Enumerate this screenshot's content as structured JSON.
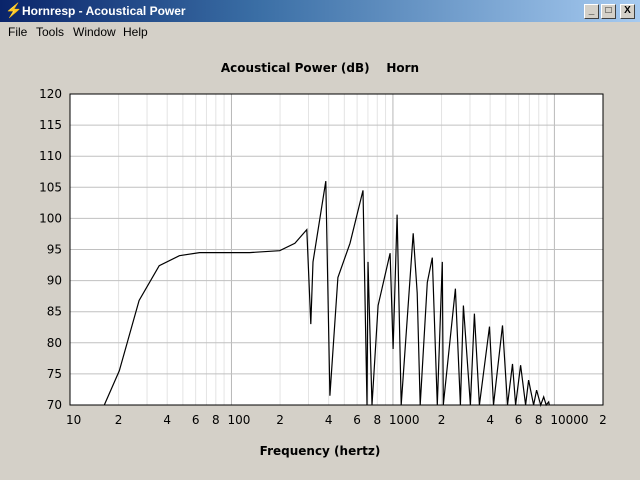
{
  "window": {
    "title": "Hornresp - Acoustical Power",
    "icon": "lightning-bolt-icon",
    "minimize": "_",
    "maximize": "□",
    "close": "X"
  },
  "menu": [
    {
      "label": "File"
    },
    {
      "label": "Tools"
    },
    {
      "label": "Window"
    },
    {
      "label": "Help"
    }
  ],
  "chart_data": {
    "type": "line",
    "title": "Acoustical Power (dB)    Horn",
    "xlabel": "Frequency (hertz)",
    "ylabel": "",
    "xscale": "log",
    "xlim": [
      10,
      20000
    ],
    "ylim": [
      70,
      120
    ],
    "grid": true,
    "yticks": [
      "70",
      "75",
      "80",
      "85",
      "90",
      "95",
      "100",
      "105",
      "110",
      "115",
      "120"
    ],
    "xticks": [
      {
        "v": 10,
        "t": "10"
      },
      {
        "v": 20,
        "t": "2"
      },
      {
        "v": 40,
        "t": "4"
      },
      {
        "v": 60,
        "t": "6"
      },
      {
        "v": 80,
        "t": "8"
      },
      {
        "v": 100,
        "t": "100"
      },
      {
        "v": 200,
        "t": "2"
      },
      {
        "v": 400,
        "t": "4"
      },
      {
        "v": 600,
        "t": "6"
      },
      {
        "v": 800,
        "t": "8"
      },
      {
        "v": 1000,
        "t": "1000"
      },
      {
        "v": 2000,
        "t": "2"
      },
      {
        "v": 4000,
        "t": "4"
      },
      {
        "v": 6000,
        "t": "6"
      },
      {
        "v": 8000,
        "t": "8"
      },
      {
        "v": 10000,
        "t": "10000"
      },
      {
        "v": 20000,
        "t": "2"
      }
    ],
    "series": [
      {
        "color": "#000000",
        "points": [
          [
            16.3,
            70
          ],
          [
            20.2,
            75.5
          ],
          [
            26.8,
            86.8
          ],
          [
            35.7,
            92.4
          ],
          [
            47.6,
            94
          ],
          [
            63.4,
            94.5
          ],
          [
            129.6,
            94.5
          ],
          [
            199,
            94.8
          ],
          [
            247,
            96
          ],
          [
            293,
            98.2
          ],
          [
            310,
            83
          ],
          [
            320,
            93
          ],
          [
            384,
            106
          ],
          [
            407,
            71.5
          ],
          [
            456,
            90.5
          ],
          [
            542,
            96
          ],
          [
            653,
            104.5
          ],
          [
            691,
            70
          ],
          [
            701,
            93
          ],
          [
            742,
            70
          ],
          [
            809,
            86
          ],
          [
            961,
            94.4
          ],
          [
            1003,
            79
          ],
          [
            1062,
            100.6
          ],
          [
            1125,
            70
          ],
          [
            1336,
            97.6
          ],
          [
            1414,
            88
          ],
          [
            1476,
            70
          ],
          [
            1632,
            89.7
          ],
          [
            1753,
            93.7
          ],
          [
            1883,
            70
          ],
          [
            2022,
            93
          ],
          [
            2051,
            70
          ],
          [
            2436,
            88.7
          ],
          [
            2616,
            70
          ],
          [
            2731,
            86
          ],
          [
            3018,
            70
          ],
          [
            3196,
            84.7
          ],
          [
            3434,
            70
          ],
          [
            3962,
            82.6
          ],
          [
            4196,
            70
          ],
          [
            4772,
            82.8
          ],
          [
            5126,
            70
          ],
          [
            5506,
            76.6
          ],
          [
            5748,
            70
          ],
          [
            6174,
            76.4
          ],
          [
            6632,
            70
          ],
          [
            6923,
            74
          ],
          [
            7435,
            70
          ],
          [
            7762,
            72.4
          ],
          [
            8221,
            70
          ],
          [
            8581,
            71.3
          ],
          [
            8900,
            70
          ],
          [
            9218,
            70.5
          ],
          [
            9300,
            70
          ]
        ]
      }
    ]
  }
}
